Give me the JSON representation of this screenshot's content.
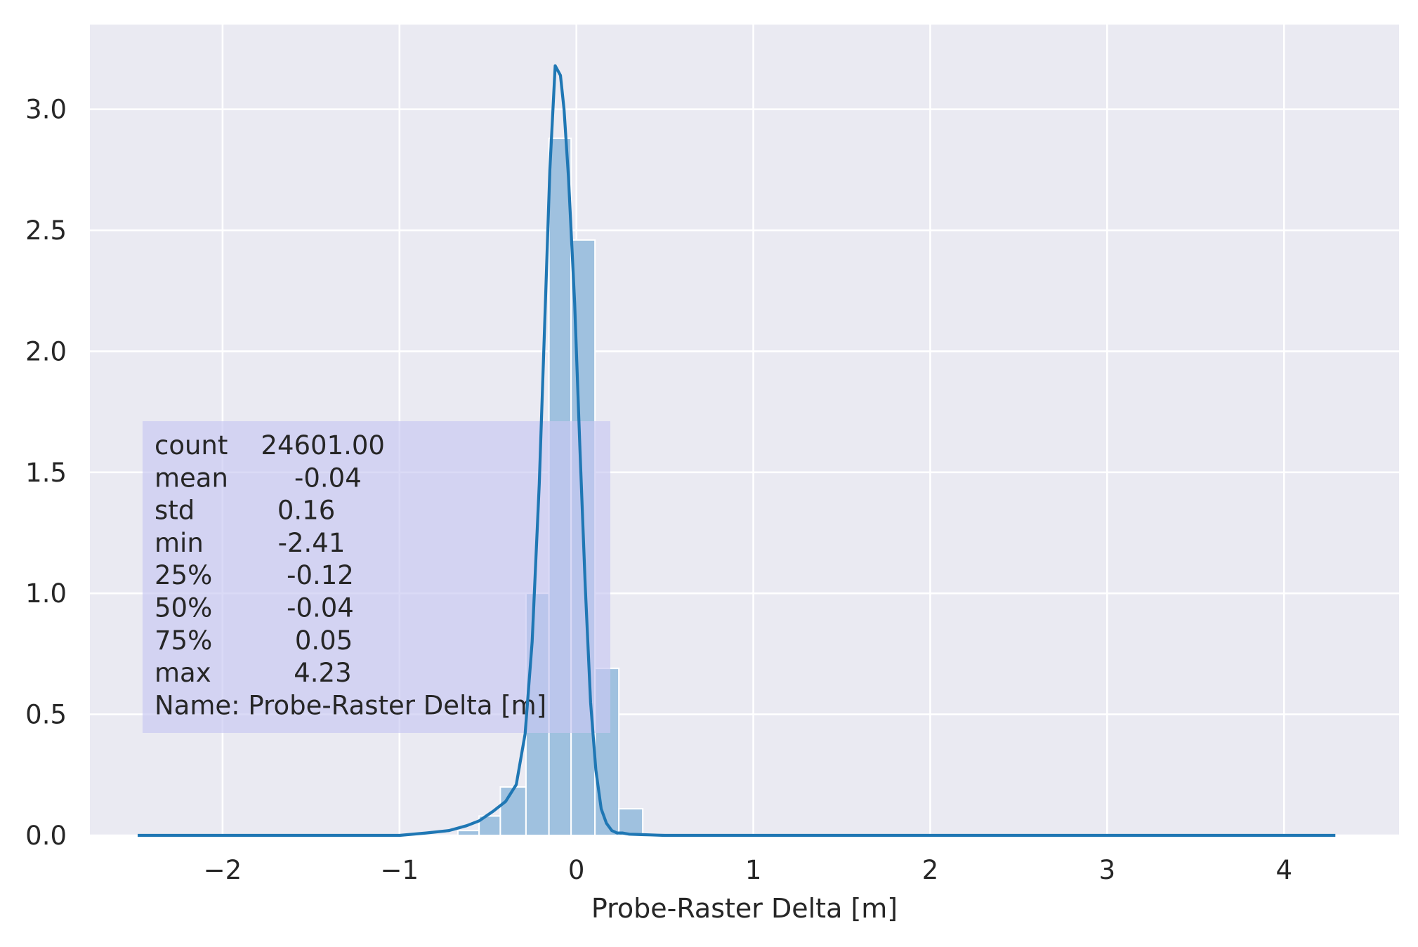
{
  "chart_data": {
    "type": "bar",
    "xlabel": "Probe-Raster Delta [m]",
    "ylabel": "",
    "title": "",
    "xlim": [
      -2.75,
      4.65
    ],
    "ylim": [
      0,
      3.35
    ],
    "xticks": [
      -2,
      -1,
      0,
      1,
      2,
      3,
      4
    ],
    "xtick_labels": [
      "−2",
      "−1",
      "0",
      "1",
      "2",
      "3",
      "4"
    ],
    "yticks": [
      0.0,
      0.5,
      1.0,
      1.5,
      2.0,
      2.5,
      3.0
    ],
    "ytick_labels": [
      "0.0",
      "0.5",
      "1.0",
      "1.5",
      "2.0",
      "2.5",
      "3.0"
    ],
    "grid": true,
    "histogram": {
      "bin_edges": [
        -0.67,
        -0.55,
        -0.43,
        -0.285,
        -0.155,
        -0.03,
        0.105,
        0.24,
        0.375
      ],
      "values": [
        0.02,
        0.08,
        0.2,
        1.0,
        2.88,
        2.46,
        0.69,
        0.11
      ],
      "color": "#9fc1df"
    },
    "kde": {
      "color": "#1f77b4",
      "x": [
        -2.48,
        -2.0,
        -1.5,
        -1.0,
        -0.85,
        -0.72,
        -0.62,
        -0.55,
        -0.47,
        -0.4,
        -0.34,
        -0.29,
        -0.25,
        -0.21,
        -0.18,
        -0.15,
        -0.12,
        -0.09,
        -0.07,
        -0.045,
        -0.01,
        0.02,
        0.05,
        0.08,
        0.11,
        0.14,
        0.17,
        0.2,
        0.23,
        0.26,
        0.3,
        0.34,
        0.38,
        0.42,
        0.46,
        0.5,
        0.6,
        0.7,
        0.8,
        1.0,
        1.5,
        2.0,
        3.0,
        3.5,
        4.0,
        4.29
      ],
      "y": [
        0.0,
        0.0,
        0.0,
        0.0,
        0.01,
        0.02,
        0.04,
        0.06,
        0.1,
        0.14,
        0.21,
        0.42,
        0.8,
        1.45,
        2.1,
        2.75,
        3.18,
        3.14,
        3.0,
        2.72,
        2.2,
        1.6,
        1.03,
        0.55,
        0.27,
        0.11,
        0.05,
        0.02,
        0.01,
        0.01,
        0.005,
        0.004,
        0.003,
        0.002,
        0.001,
        0.0,
        0.0,
        0.0,
        0.0,
        0.0,
        0.0,
        0.0,
        0.0,
        0.0,
        0.0,
        0.0
      ]
    },
    "stats_box": {
      "lines": [
        "count    24601.00",
        "mean        -0.04",
        "std          0.16",
        "min         -2.41",
        "25%         -0.12",
        "50%         -0.04",
        "75%          0.05",
        "max          4.23",
        "Name: Probe-Raster Delta [m]"
      ],
      "background": "#c8c8f2"
    },
    "colors": {
      "plot_background": "#eaeaf2",
      "grid": "#ffffff"
    }
  }
}
